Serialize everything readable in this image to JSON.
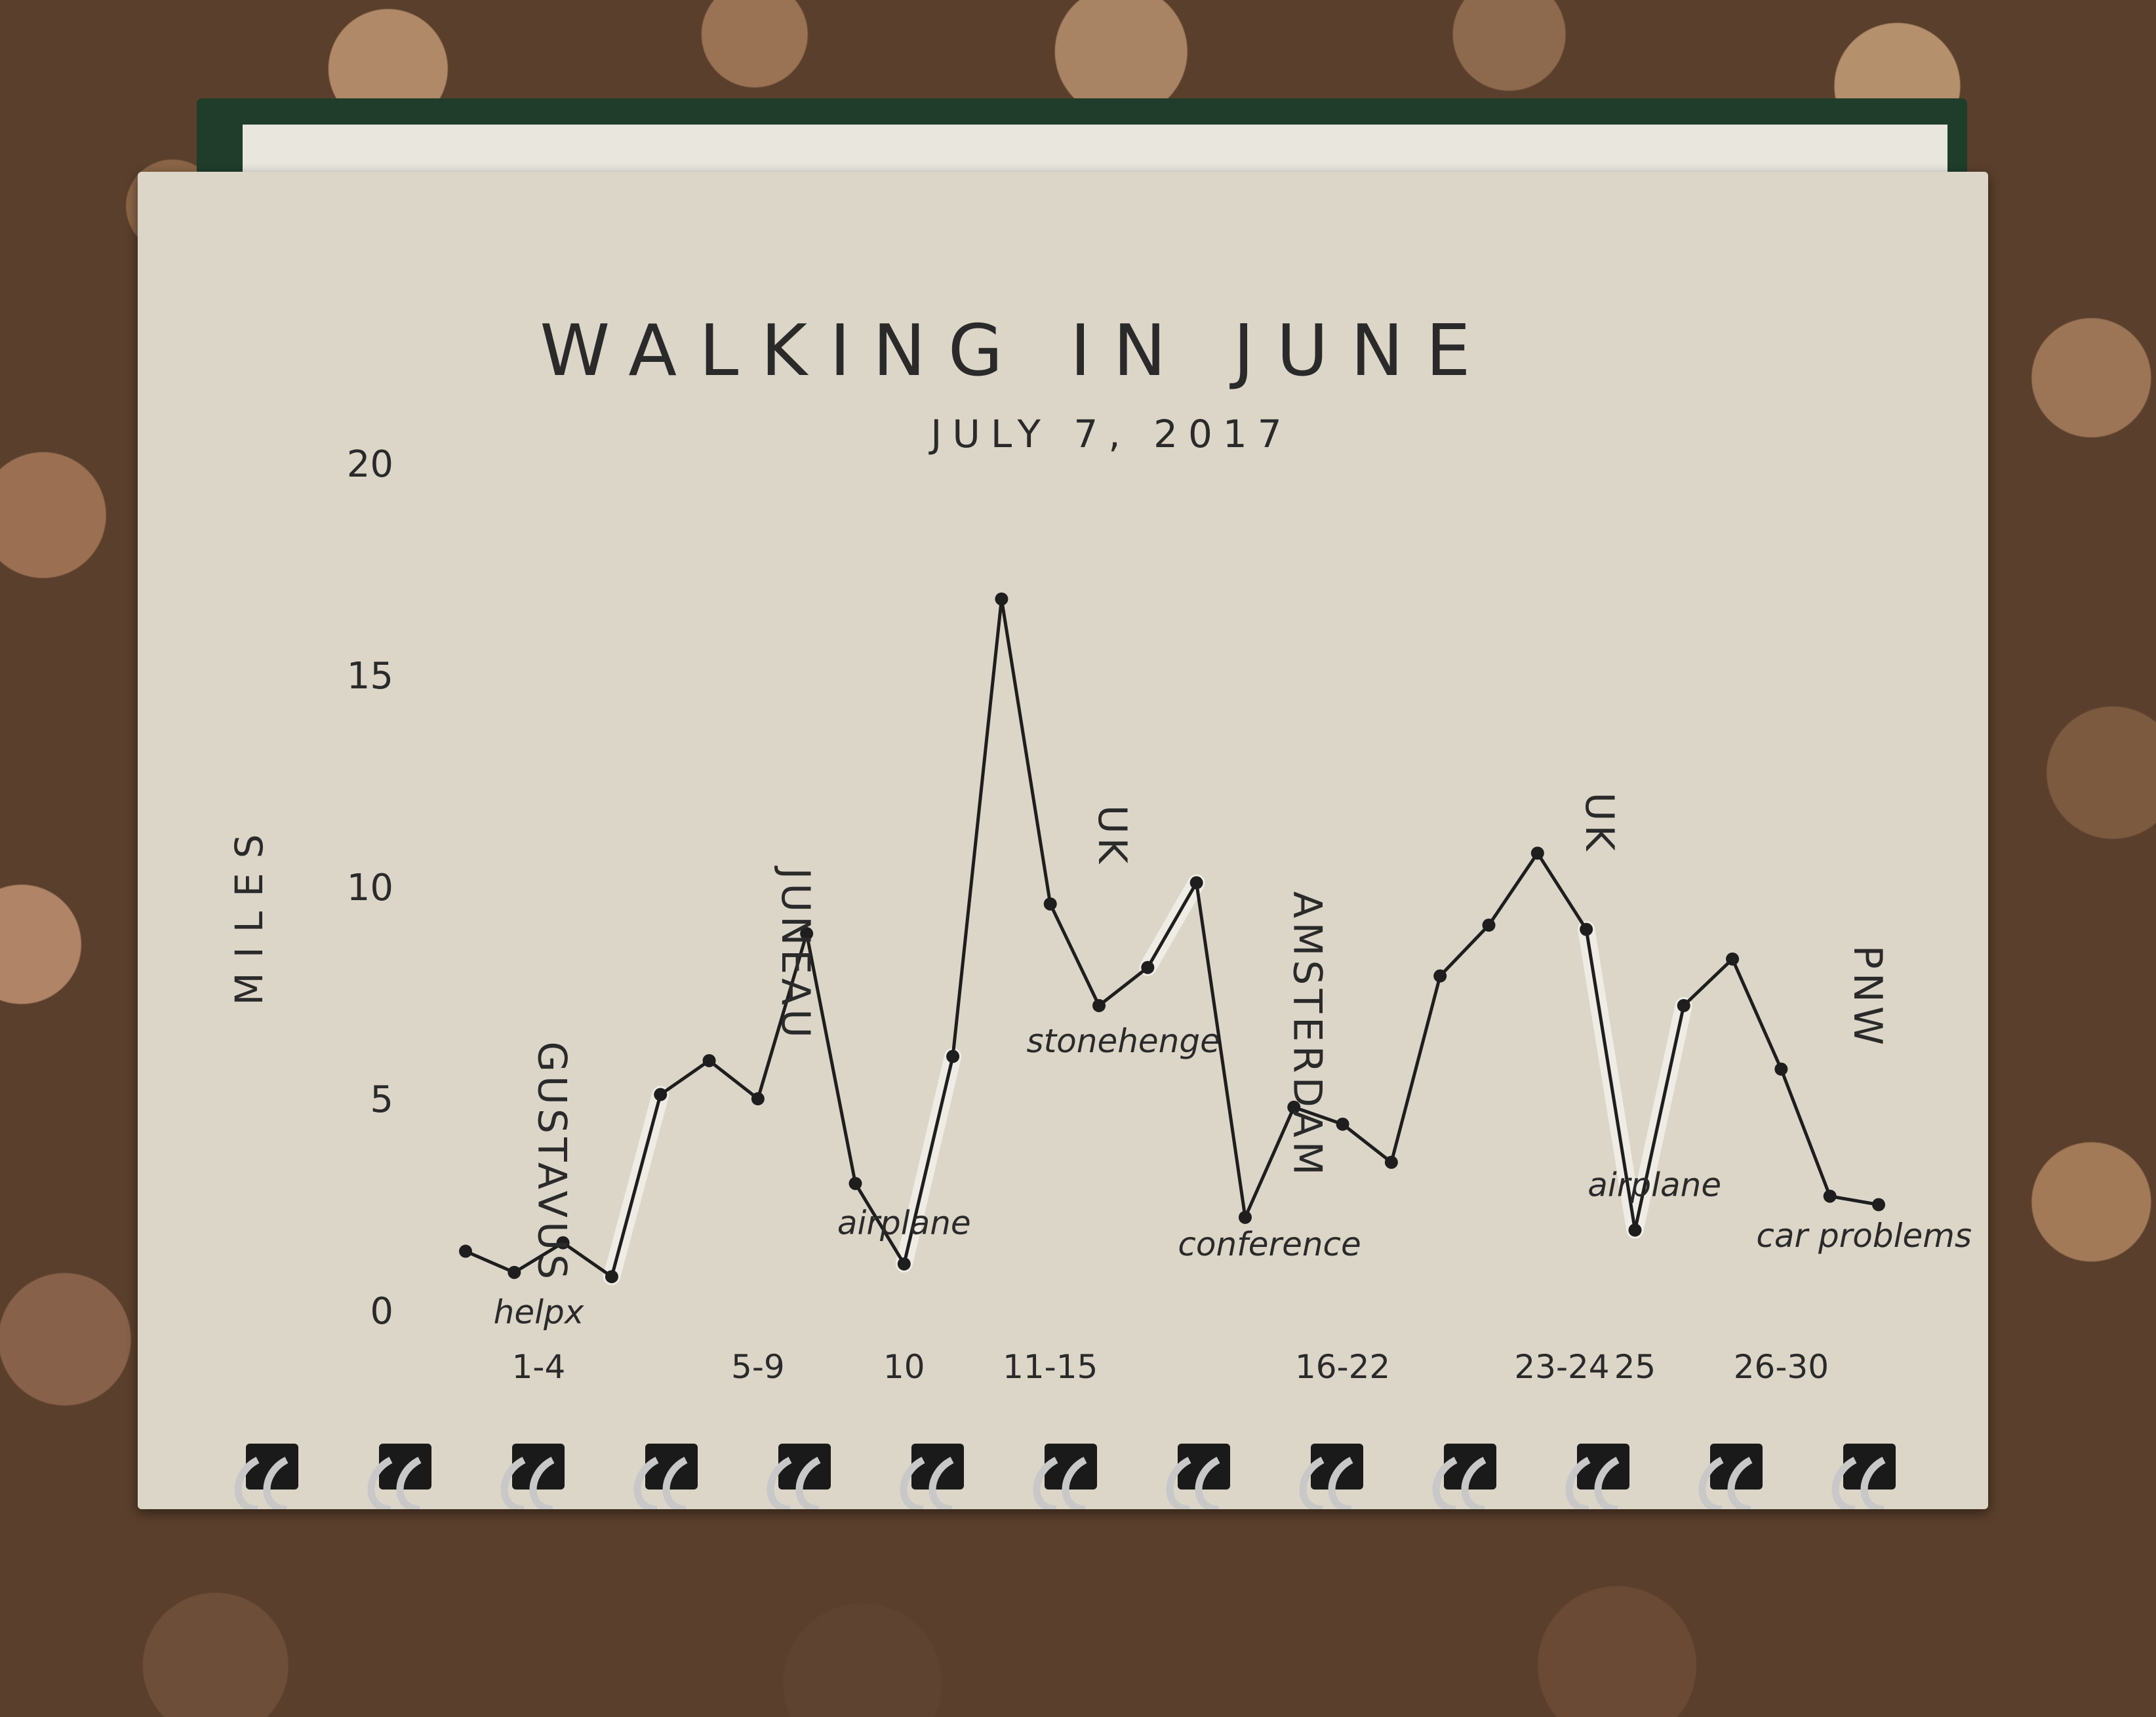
{
  "chart_data": {
    "type": "line",
    "title": "WALKING IN JUNE",
    "subtitle": "JULY 7, 2017",
    "ylabel": "MILES",
    "xlabel": "",
    "ylim": [
      0,
      20
    ],
    "yticks": [
      0,
      5,
      10,
      15,
      20
    ],
    "x_labels": [
      {
        "label": "1-4",
        "day": 2.5
      },
      {
        "label": "5-9",
        "day": 7
      },
      {
        "label": "10",
        "day": 10
      },
      {
        "label": "11-15",
        "day": 13
      },
      {
        "label": "16-22",
        "day": 19
      },
      {
        "label": "23-24",
        "day": 23.5
      },
      {
        "label": "25",
        "day": 25
      },
      {
        "label": "26-30",
        "day": 28
      }
    ],
    "series": [
      {
        "values": [
          {
            "day": 1,
            "miles": 1.4
          },
          {
            "day": 2,
            "miles": 0.9
          },
          {
            "day": 3,
            "miles": 1.6
          },
          {
            "day": 4,
            "miles": 0.8
          },
          {
            "day": 5,
            "miles": 5.1
          },
          {
            "day": 6,
            "miles": 5.9
          },
          {
            "day": 7,
            "miles": 5.0
          },
          {
            "day": 8,
            "miles": 8.9
          },
          {
            "day": 9,
            "miles": 3.0
          },
          {
            "day": 10,
            "miles": 1.1
          },
          {
            "day": 11,
            "miles": 6.0
          },
          {
            "day": 12,
            "miles": 16.8
          },
          {
            "day": 13,
            "miles": 9.6
          },
          {
            "day": 14,
            "miles": 7.2
          },
          {
            "day": 15,
            "miles": 8.1
          },
          {
            "day": 16,
            "miles": 10.1
          },
          {
            "day": 17,
            "miles": 2.2
          },
          {
            "day": 18,
            "miles": 4.8
          },
          {
            "day": 19,
            "miles": 4.4
          },
          {
            "day": 20,
            "miles": 3.5
          },
          {
            "day": 21,
            "miles": 7.9
          },
          {
            "day": 22,
            "miles": 9.1
          },
          {
            "day": 23,
            "miles": 10.8
          },
          {
            "day": 24,
            "miles": 9.0
          },
          {
            "day": 25,
            "miles": 1.9
          },
          {
            "day": 26,
            "miles": 7.2
          },
          {
            "day": 27,
            "miles": 8.3
          },
          {
            "day": 28,
            "miles": 5.7
          },
          {
            "day": 29,
            "miles": 2.7
          },
          {
            "day": 30,
            "miles": 2.5
          }
        ]
      }
    ],
    "annotations": [
      {
        "text": "GUSTAVUS",
        "day": 2.5,
        "miles": 3.5,
        "orientation": "vertical"
      },
      {
        "text": "helpx",
        "day": 2.5,
        "miles": -0.3,
        "orientation": "horizontal"
      },
      {
        "text": "JUNEAU",
        "day": 7.5,
        "miles": 8.4,
        "orientation": "vertical"
      },
      {
        "text": "airplane",
        "day": 10,
        "miles": 1.8,
        "orientation": "horizontal"
      },
      {
        "text": "UK",
        "day": 14,
        "miles": 11.2,
        "orientation": "vertical"
      },
      {
        "text": "stonehenge",
        "day": 14.5,
        "miles": 6.1,
        "orientation": "horizontal"
      },
      {
        "text": "AMSTERDAM",
        "day": 18,
        "miles": 6.5,
        "orientation": "vertical"
      },
      {
        "text": "conference",
        "day": 17.5,
        "miles": 1.3,
        "orientation": "horizontal"
      },
      {
        "text": "UK",
        "day": 24,
        "miles": 11.5,
        "orientation": "vertical"
      },
      {
        "text": "airplane",
        "day": 25.4,
        "miles": 2.7,
        "orientation": "horizontal"
      },
      {
        "text": "PNW",
        "day": 29.5,
        "miles": 7.4,
        "orientation": "vertical"
      },
      {
        "text": "car problems",
        "day": 29.7,
        "miles": 1.5,
        "orientation": "horizontal"
      }
    ],
    "grid": false,
    "legend": "none",
    "colors": {
      "line": "#1e1e1e",
      "marker": "#1e1e1e",
      "text": "#2a2a2a",
      "highlight": "#f1efe9"
    }
  }
}
